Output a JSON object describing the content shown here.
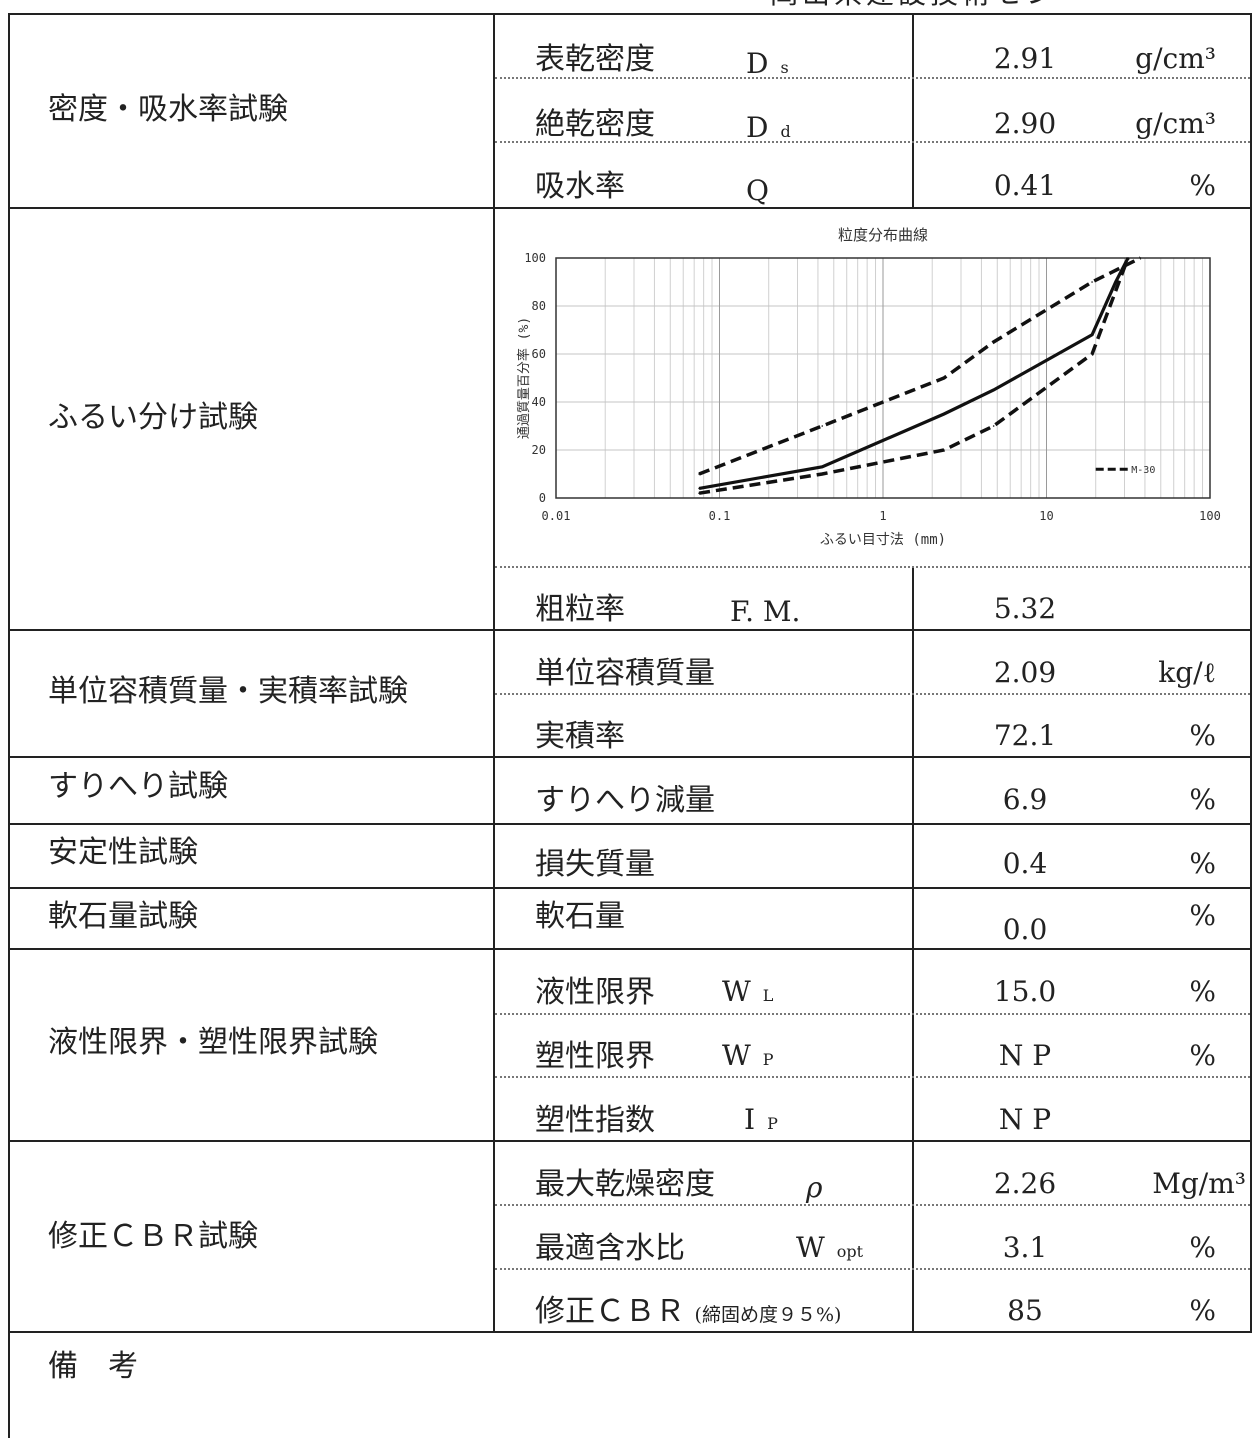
{
  "header": {
    "text": "岡山県建設技術セン"
  },
  "rows": {
    "density": {
      "category": "密度・吸水率試験",
      "items": [
        {
          "name": "表乾密度",
          "symbol": "D",
          "sub": "s",
          "value": "2.91",
          "unit": "g/cm³"
        },
        {
          "name": "絶乾密度",
          "symbol": "D",
          "sub": "d",
          "value": "2.90",
          "unit": "g/cm³"
        },
        {
          "name": "吸水率",
          "symbol": "Q",
          "sub": "",
          "value": "0.41",
          "unit": "%"
        }
      ]
    },
    "sieve": {
      "category": "ふるい分け試験",
      "fm": {
        "name": "粗粒率",
        "symbol": "F. M.",
        "value": "5.32"
      }
    },
    "unit_weight": {
      "category": "単位容積質量・実積率試験",
      "items": [
        {
          "name": "単位容積質量",
          "value": "2.09",
          "unit": "kg/ℓ"
        },
        {
          "name": "実積率",
          "value": "72.1",
          "unit": "%"
        }
      ]
    },
    "abrasion": {
      "category": "すりへり試験",
      "name": "すりへり減量",
      "value": "6.9",
      "unit": "%"
    },
    "stability": {
      "category": "安定性試験",
      "name": "損失質量",
      "value": "0.4",
      "unit": "%"
    },
    "soft_stone": {
      "category": "軟石量試験",
      "name": "軟石量",
      "value": "0.0",
      "unit": "%"
    },
    "limits": {
      "category": "液性限界・塑性限界試験",
      "items": [
        {
          "name": "液性限界",
          "symbol": "W",
          "sub": "L",
          "value": "15.0",
          "unit": "%"
        },
        {
          "name": "塑性限界",
          "symbol": "W",
          "sub": "P",
          "value": "N P",
          "unit": "%"
        },
        {
          "name": "塑性指数",
          "symbol": "I",
          "sub": "P",
          "value": "N P",
          "unit": ""
        }
      ]
    },
    "cbr": {
      "category": "修正ＣＢＲ試験",
      "items": [
        {
          "name": "最大乾燥密度",
          "symbol": "ρ",
          "sub": "",
          "value": "2.26",
          "unit": "Mg/m³"
        },
        {
          "name": "最適含水比",
          "symbol": "W",
          "sub": "opt",
          "value": "3.1",
          "unit": "%"
        },
        {
          "name": "修正ＣＢＲ",
          "note": "(締固め度９５%)",
          "value": "85",
          "unit": "%"
        }
      ]
    },
    "remarks": {
      "label": "備　考"
    }
  },
  "chart_data": {
    "type": "line",
    "title": "粒度分布曲線",
    "xlabel": "ふるい目寸法 (mm)",
    "ylabel": "通過質量百分率 (%)",
    "x_scale": "log",
    "xlim": [
      0.01,
      100
    ],
    "ylim": [
      0,
      100
    ],
    "x_ticks": [
      "0.01",
      "0.1",
      "1",
      "10",
      "100"
    ],
    "y_ticks": [
      "0",
      "20",
      "40",
      "60",
      "80",
      "100"
    ],
    "grid": true,
    "legend": {
      "position": "bottom-right",
      "label": "M-30"
    },
    "series": [
      {
        "style": "solid",
        "x": [
          0.075,
          0.425,
          2.36,
          4.75,
          19,
          26.5,
          31.5
        ],
        "y": [
          4,
          13,
          35,
          45,
          68,
          90,
          100
        ]
      },
      {
        "name": "M-30",
        "style": "dashed",
        "x": [
          0.075,
          0.425,
          2.36,
          4.75,
          19,
          37.5
        ],
        "y": [
          10,
          30,
          50,
          65,
          90,
          100
        ]
      },
      {
        "name": "M-30",
        "style": "dashed",
        "x": [
          0.075,
          0.425,
          2.36,
          4.75,
          19,
          31.5
        ],
        "y": [
          2,
          10,
          20,
          30,
          60,
          100
        ]
      }
    ]
  }
}
